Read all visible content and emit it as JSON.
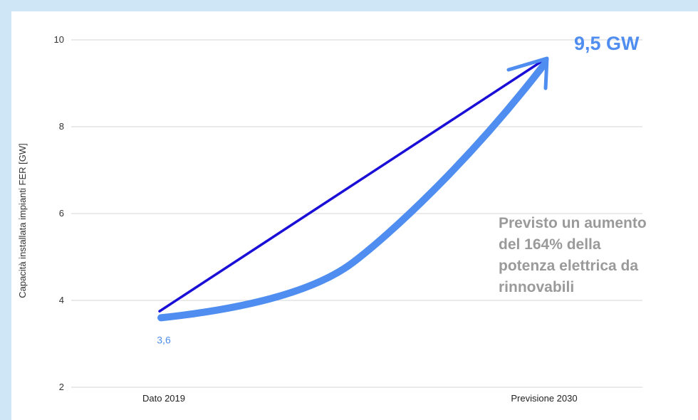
{
  "chart_data": {
    "type": "line",
    "title": "",
    "xlabel": "",
    "ylabel": "Capacità installata impianti FER [GW]",
    "categories": [
      "Dato 2019",
      "Previsione 2030"
    ],
    "yticks": [
      2,
      4,
      6,
      8,
      10
    ],
    "ylim": [
      2,
      10
    ],
    "grid": true,
    "series": [
      {
        "values": [
          3.6,
          9.5
        ],
        "color": "#4f8ef0",
        "style": "curved thick arrow"
      },
      {
        "values": [
          3.75,
          9.5
        ],
        "color": "#1a0fd6",
        "style": "straight line"
      }
    ],
    "start_label": "3,6",
    "end_label": "9,5 GW",
    "annotation": [
      "Previsto un aumento",
      "del 164% della",
      "potenza elettrica da",
      "rinnovabili"
    ]
  }
}
